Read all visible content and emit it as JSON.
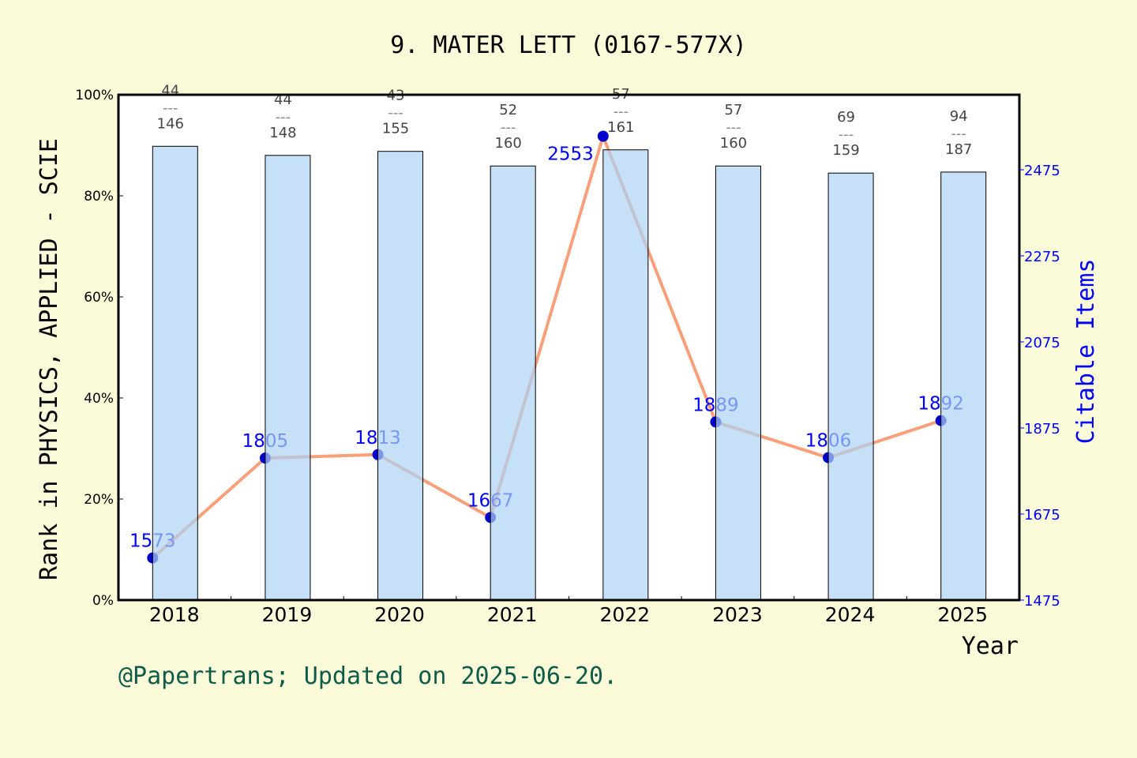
{
  "chart_data": {
    "type": "bar+line",
    "title": "9. MATER LETT (0167-577X)",
    "xlabel": "Year",
    "ylabel": "Rank in PHYSICS, APPLIED - SCIE",
    "y2label": "Citable Items",
    "categories": [
      "2018",
      "2019",
      "2020",
      "2021",
      "2022",
      "2023",
      "2024",
      "2025"
    ],
    "bars": {
      "values_percent": [
        89.8,
        88.0,
        88.8,
        85.9,
        89.1,
        85.9,
        84.5,
        84.7
      ],
      "rank": [
        "44",
        "44",
        "43",
        "52",
        "57",
        "57",
        "69",
        "94"
      ],
      "total": [
        "146",
        "148",
        "155",
        "160",
        "161",
        "160",
        "159",
        "187"
      ],
      "separator": "---"
    },
    "line": {
      "values": [
        1573,
        1805,
        1813,
        1667,
        2553,
        1889,
        1806,
        1892
      ],
      "labels": [
        "1573",
        "1805",
        "1813",
        "1667",
        "2553",
        "1889",
        "1806",
        "1892"
      ]
    },
    "ylim": [
      0,
      100
    ],
    "yticks": [
      "0%",
      "20%",
      "40%",
      "60%",
      "80%",
      "100%"
    ],
    "y2lim": [
      1475,
      2475
    ],
    "y2ticks": [
      "1475",
      "1675",
      "1875",
      "2075",
      "2275",
      "2475"
    ],
    "footer": "@Papertrans; Updated on 2025-06-20.",
    "colors": {
      "background": "#fbfbd9",
      "bar": "#c5e0f7",
      "line": "#f9a07a",
      "marker": "#0000cc",
      "y2": "#0000ff",
      "footer": "#0d5c4a"
    }
  }
}
